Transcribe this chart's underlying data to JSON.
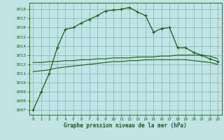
{
  "title": "Graphe pression niveau de la mer (hPa)",
  "bg_color": "#c0e4e4",
  "grid_color": "#90c0c0",
  "line_color": "#1a5c1a",
  "xlim": [
    -0.5,
    23.5
  ],
  "ylim": [
    1006.5,
    1018.7
  ],
  "yticks": [
    1007,
    1008,
    1009,
    1010,
    1011,
    1012,
    1013,
    1014,
    1015,
    1016,
    1017,
    1018
  ],
  "xticks": [
    0,
    1,
    2,
    3,
    4,
    5,
    6,
    7,
    8,
    9,
    10,
    11,
    12,
    13,
    14,
    15,
    16,
    17,
    18,
    19,
    20,
    21,
    22,
    23
  ],
  "main_x": [
    0,
    1,
    2,
    3,
    4,
    5,
    6,
    7,
    8,
    9,
    10,
    11,
    12,
    13,
    14,
    15,
    16,
    17,
    18,
    19,
    20,
    21,
    22,
    23
  ],
  "main_y": [
    1007.0,
    1009.0,
    1011.0,
    1013.8,
    1015.8,
    1016.0,
    1016.5,
    1016.9,
    1017.3,
    1017.8,
    1017.9,
    1018.0,
    1018.2,
    1017.7,
    1017.3,
    1015.5,
    1015.9,
    1016.0,
    1013.8,
    1013.8,
    1013.3,
    1013.0,
    1012.6,
    1012.3
  ],
  "flat_y1": [
    1012.2,
    1012.2,
    1012.3,
    1012.3,
    1012.4,
    1012.4,
    1012.5,
    1012.5,
    1012.6,
    1012.6,
    1012.7,
    1012.7,
    1012.7,
    1012.8,
    1012.8,
    1012.8,
    1012.9,
    1012.9,
    1013.0,
    1013.0,
    1013.0,
    1013.0,
    1012.9,
    1012.6
  ],
  "flat_y2": [
    1011.2,
    1011.3,
    1011.4,
    1011.6,
    1011.7,
    1011.8,
    1011.9,
    1012.0,
    1012.1,
    1012.2,
    1012.3,
    1012.3,
    1012.4,
    1012.4,
    1012.5,
    1012.5,
    1012.5,
    1012.5,
    1012.5,
    1012.5,
    1012.4,
    1012.3,
    1012.2,
    1012.0
  ]
}
